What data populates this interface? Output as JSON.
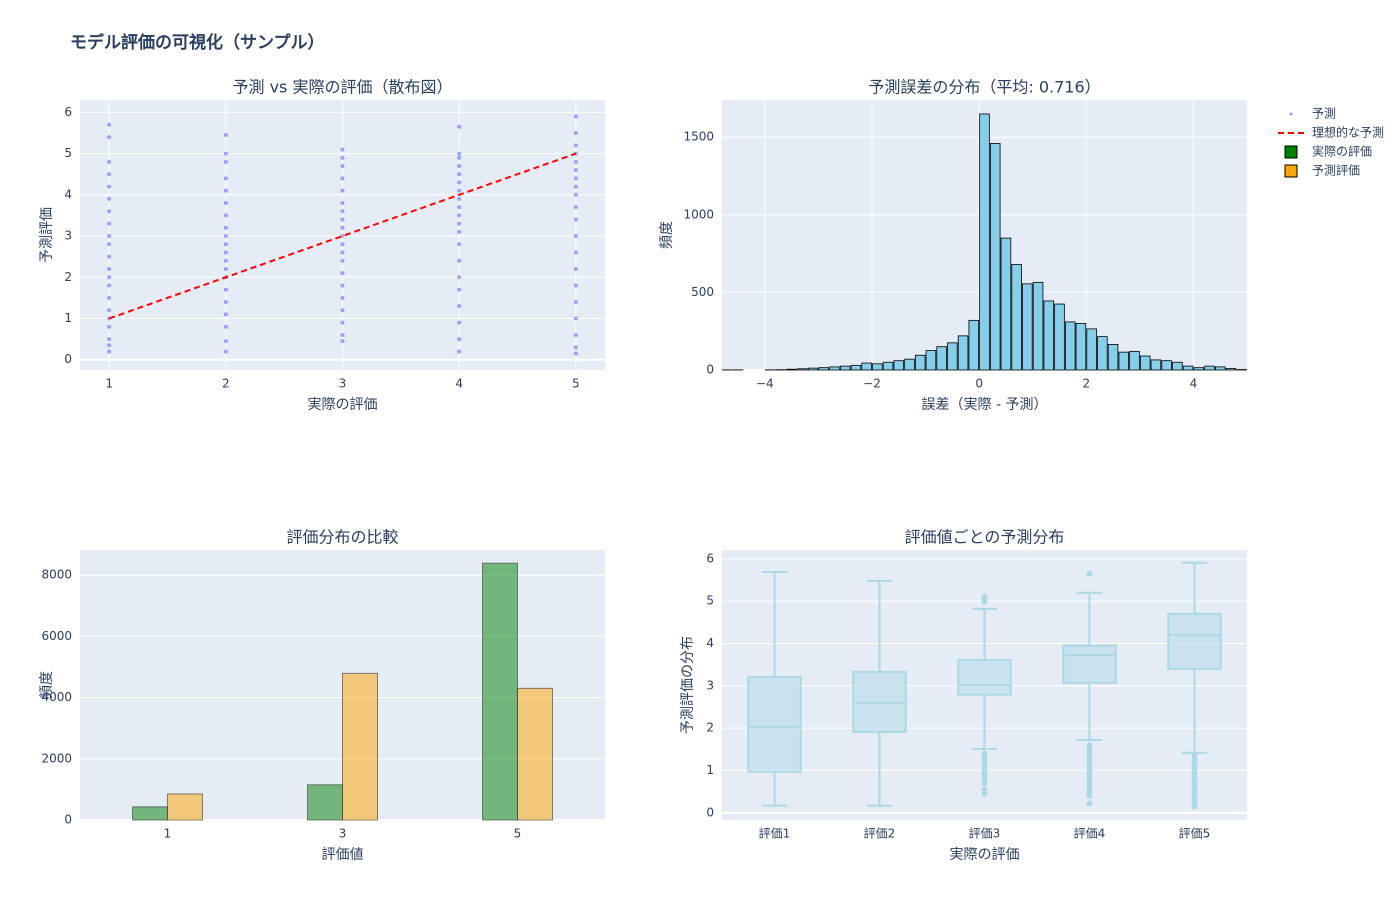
{
  "title": "モデル評価の可視化（サンプル）",
  "legend": "right",
  "chart_data": [
    {
      "type": "scatter",
      "title": "予測 vs 実際の評価（散布図）",
      "xlabel": "実際の評価",
      "ylabel": "予測評価",
      "xlim": [
        0.75,
        5.25
      ],
      "ylim": [
        -0.25,
        6.3
      ],
      "xticks": [
        1,
        2,
        3,
        4,
        5
      ],
      "yticks": [
        0,
        1,
        2,
        3,
        4,
        5,
        6
      ],
      "grid": true,
      "series": [
        {
          "name": "予測",
          "mode": "markers",
          "color": "#0000ff",
          "x": [
            1,
            1,
            1,
            1,
            1,
            1,
            1,
            1,
            1,
            1,
            1,
            1,
            1,
            1,
            1,
            1,
            1,
            1,
            1,
            1,
            1,
            2,
            2,
            2,
            2,
            2,
            2,
            2,
            2,
            2,
            2,
            2,
            2,
            2,
            2,
            2,
            2,
            2,
            2,
            2,
            2,
            3,
            3,
            3,
            3,
            3,
            3,
            3,
            3,
            3,
            3,
            3,
            3,
            3,
            3,
            3,
            3,
            3,
            3,
            3,
            3,
            4,
            4,
            4,
            4,
            4,
            4,
            4,
            4,
            4,
            4,
            4,
            4,
            4,
            4,
            4,
            4,
            4,
            4,
            4,
            4,
            5,
            5,
            5,
            5,
            5,
            5,
            5,
            5,
            5,
            5,
            5,
            5,
            5,
            5,
            5,
            5,
            5,
            5,
            5,
            5
          ],
          "y": [
            0.2,
            0.35,
            0.5,
            0.8,
            1.0,
            1.2,
            1.5,
            1.8,
            2.0,
            2.2,
            2.5,
            2.8,
            3.0,
            3.3,
            3.6,
            3.9,
            4.2,
            4.5,
            4.8,
            5.4,
            5.7,
            0.2,
            0.45,
            0.8,
            1.1,
            1.4,
            1.7,
            2.0,
            2.2,
            2.4,
            2.6,
            2.8,
            3.0,
            3.2,
            3.5,
            3.8,
            4.1,
            4.4,
            4.8,
            5.0,
            5.45,
            0.45,
            0.6,
            0.9,
            1.2,
            1.5,
            1.8,
            2.1,
            2.4,
            2.6,
            2.8,
            3.0,
            3.2,
            3.4,
            3.6,
            3.8,
            4.1,
            4.4,
            4.7,
            4.9,
            5.1,
            0.2,
            0.5,
            0.9,
            1.3,
            1.7,
            2.0,
            2.4,
            2.8,
            3.1,
            3.3,
            3.5,
            3.7,
            3.9,
            4.1,
            4.3,
            4.5,
            4.7,
            4.9,
            5.0,
            5.65,
            0.15,
            0.3,
            0.6,
            1.0,
            1.4,
            1.8,
            2.2,
            2.6,
            3.0,
            3.4,
            3.7,
            4.0,
            4.2,
            4.4,
            4.6,
            4.8,
            5.0,
            5.2,
            5.5,
            5.9
          ]
        },
        {
          "name": "理想的な予測",
          "mode": "lines",
          "dash": true,
          "color": "#ff0000",
          "x": [
            1,
            5
          ],
          "y": [
            1,
            5
          ]
        }
      ]
    },
    {
      "type": "histogram",
      "title": "予測誤差の分布（平均: 0.716）",
      "xlabel": "誤差（実際 - 予測）",
      "ylabel": "頻度",
      "xlim": [
        -4.8,
        5.0
      ],
      "ylim": [
        0,
        1740
      ],
      "xticks": [
        {
          "value": -4,
          "label": "−4"
        },
        {
          "value": -2,
          "label": "−2"
        },
        0,
        2,
        4
      ],
      "yticks": [
        0,
        500,
        1000,
        1500
      ],
      "grid": true,
      "color": "#87ceeb",
      "edgecolor": "#000000",
      "bins": [
        -4.8,
        -4.6,
        -4.4,
        -4.2,
        -4.0,
        -3.8,
        -3.6,
        -3.4,
        -3.2,
        -3.0,
        -2.8,
        -2.6,
        -2.4,
        -2.2,
        -2.0,
        -1.8,
        -1.6,
        -1.4,
        -1.2,
        -1.0,
        -0.8,
        -0.6,
        -0.4,
        -0.2,
        0,
        0.2,
        0.4,
        0.6,
        0.8,
        1.0,
        1.2,
        1.4,
        1.6,
        1.8,
        2.0,
        2.2,
        2.4,
        2.6,
        2.8,
        3.0,
        3.2,
        3.4,
        3.6,
        3.8,
        4.0,
        4.2,
        4.4,
        4.6,
        4.8,
        5.0
      ],
      "counts": [
        1,
        1,
        0,
        0,
        1,
        2,
        5,
        8,
        12,
        15,
        20,
        25,
        30,
        45,
        40,
        50,
        60,
        70,
        95,
        125,
        150,
        175,
        220,
        320,
        1650,
        1460,
        850,
        680,
        555,
        565,
        445,
        425,
        310,
        300,
        265,
        215,
        165,
        115,
        120,
        90,
        65,
        60,
        50,
        25,
        15,
        25,
        20,
        10,
        3
      ]
    },
    {
      "type": "bar",
      "title": "評価分布の比較",
      "xlabel": "評価値",
      "ylabel": "頻度",
      "xlim": [
        0,
        6
      ],
      "ylim": [
        0,
        8820
      ],
      "xticks": [
        1,
        3,
        5
      ],
      "yticks": [
        0,
        2000,
        4000,
        6000,
        8000
      ],
      "grid": true,
      "x": [
        1,
        3,
        5
      ],
      "series": [
        {
          "name": "実際の評価",
          "color": "green",
          "values": [
            430,
            1150,
            8390
          ]
        },
        {
          "name": "予測評価",
          "color": "orange",
          "values": [
            850,
            4790,
            4300
          ]
        }
      ]
    },
    {
      "type": "box",
      "title": "評価値ごとの予測分布",
      "xlabel": "実際の評価",
      "ylabel": "予測評価の分布",
      "ylim": [
        -0.17,
        6.21
      ],
      "yticks": [
        0,
        1,
        2,
        3,
        4,
        5,
        6
      ],
      "grid": true,
      "color": "lightblue",
      "categories": [
        "評価1",
        "評価2",
        "評価3",
        "評価4",
        "評価5"
      ],
      "boxes": [
        {
          "min": 0.17,
          "q1": 0.97,
          "median": 2.03,
          "q3": 3.21,
          "max": 5.69,
          "outliers": []
        },
        {
          "min": 0.17,
          "q1": 1.91,
          "median": 2.6,
          "q3": 3.33,
          "max": 5.48,
          "outliers": []
        },
        {
          "min": 1.51,
          "q1": 2.79,
          "median": 3.02,
          "q3": 3.61,
          "max": 4.82,
          "outliers": [
            5.0,
            5.05,
            5.1,
            1.4,
            1.3,
            1.2,
            1.1,
            1.0,
            0.9,
            0.8,
            0.7,
            0.55,
            0.45
          ]
        },
        {
          "min": 1.72,
          "q1": 3.07,
          "median": 3.73,
          "q3": 3.95,
          "max": 5.2,
          "outliers": [
            5.65,
            1.6,
            1.5,
            1.4,
            1.3,
            1.2,
            1.1,
            1.0,
            0.9,
            0.8,
            0.7,
            0.6,
            0.5,
            0.4,
            0.22
          ]
        },
        {
          "min": 1.42,
          "q1": 3.4,
          "median": 4.2,
          "q3": 4.7,
          "max": 5.91,
          "outliers": [
            1.35,
            1.25,
            1.15,
            1.05,
            0.95,
            0.85,
            0.75,
            0.65,
            0.55,
            0.45,
            0.35,
            0.25,
            0.15
          ]
        }
      ]
    }
  ]
}
